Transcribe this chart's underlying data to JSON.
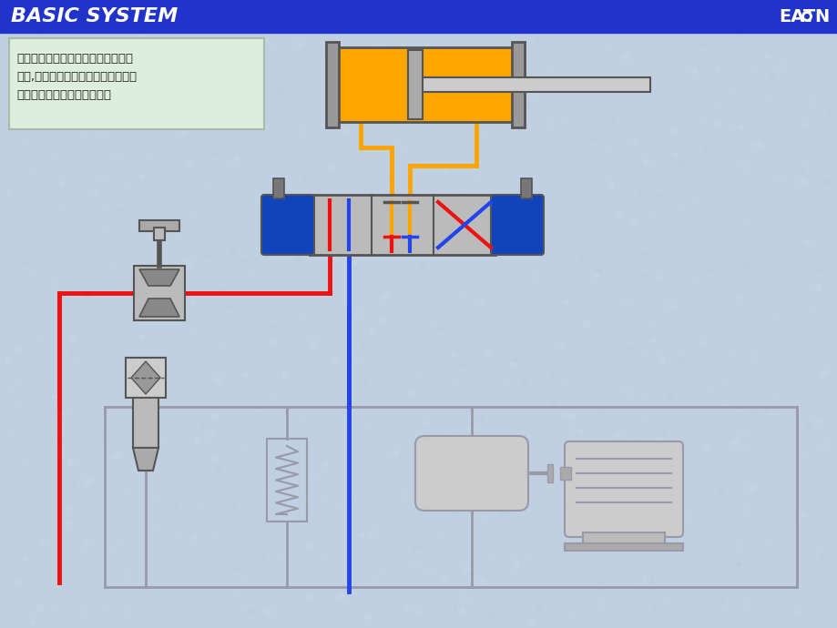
{
  "title": "BASIC SYSTEM",
  "title_bg": "#2233CC",
  "title_fg": "#FFFFFF",
  "bg_color": "#C0D0E0",
  "text_box_bg": "#DDEEDD",
  "text_line1": "当电磁阀得电时，油缸活塞将伸出和",
  "text_line2": "回缩,其速度由流量控制阀确定，而电",
  "text_line3": "磁阀不具有控制速度的能力。",
  "orange": "#FFA500",
  "red": "#EE1111",
  "blue": "#2244EE",
  "dark_gray": "#555555",
  "med_gray": "#888888",
  "light_gray": "#CCCCCC",
  "valve_gray": "#BBBBBB",
  "line_gray": "#9999AA",
  "blue_sol": "#1144BB",
  "sol_gray": "#777777"
}
